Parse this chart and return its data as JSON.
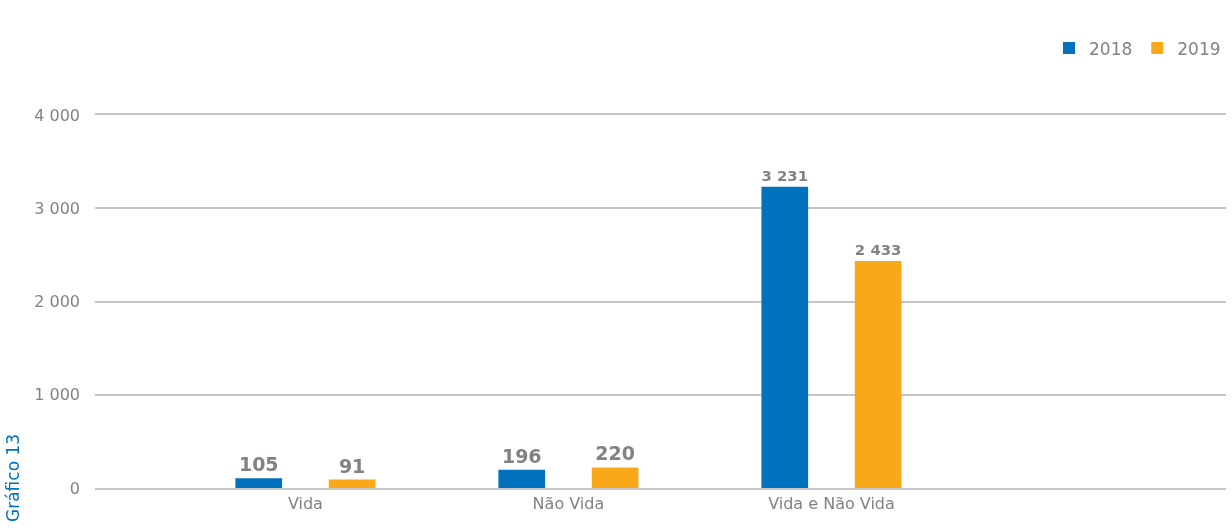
{
  "chart_data": {
    "type": "bar",
    "categories": [
      "Vida",
      "Não Vida",
      "Vida e Não Vida"
    ],
    "series": [
      {
        "name": "2018",
        "color": "#0071bc",
        "values": [
          105,
          196,
          3231
        ],
        "value_labels": [
          "105",
          "196",
          "3 231"
        ]
      },
      {
        "name": "2019",
        "color": "#f9a81a",
        "values": [
          91,
          220,
          2433
        ],
        "value_labels": [
          "91",
          "220",
          "2 433"
        ]
      }
    ],
    "ylim": [
      0,
      4000
    ],
    "yticks": [
      0,
      {
        "value": 1000,
        "label": "1 000"
      },
      {
        "value": 2000,
        "label": "2 000"
      },
      {
        "value": 3000,
        "label": "3 000"
      },
      {
        "value": 4000,
        "label": "4 000"
      }
    ],
    "grid": "y",
    "legend": "top right",
    "annotations": [
      "Gráfico 13"
    ]
  }
}
